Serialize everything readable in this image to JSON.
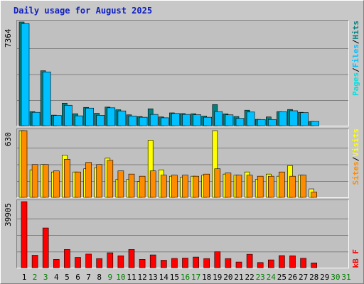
{
  "title": "Daily usage for August 2025",
  "colors": {
    "hits": "#008080",
    "files": "#00c0ff",
    "pages": "#00e0e0",
    "visits": "#ffff00",
    "sites": "#ff8c00",
    "kbytes": "#ff0000",
    "weekday": "#000000",
    "weekend": "#008000",
    "title": "#1020c0"
  },
  "panels": {
    "top": {
      "max_label": "7364",
      "legend": [
        "Pages",
        "Files",
        "Hits"
      ]
    },
    "mid": {
      "max_label": "630",
      "legend": [
        "Sites",
        "Visits"
      ]
    },
    "bot": {
      "max_label": "39905",
      "legend": [
        "kB F"
      ]
    }
  },
  "legend_sep": "/",
  "chart_data": {
    "type": "bar",
    "title": "Daily usage for August 2025",
    "categories": [
      "1",
      "2",
      "3",
      "4",
      "5",
      "6",
      "7",
      "8",
      "9",
      "10",
      "11",
      "12",
      "13",
      "14",
      "15",
      "16",
      "17",
      "18",
      "19",
      "20",
      "21",
      "22",
      "23",
      "24",
      "25",
      "26",
      "27",
      "28",
      "29",
      "30",
      "31"
    ],
    "weekend_days": [
      "2",
      "3",
      "9",
      "10",
      "16",
      "17",
      "23",
      "24",
      "30",
      "31"
    ],
    "hits": [
      7364,
      1000,
      3900,
      750,
      1600,
      850,
      1300,
      880,
      1320,
      1130,
      770,
      650,
      1200,
      620,
      910,
      860,
      850,
      680,
      1500,
      840,
      650,
      1100,
      450,
      620,
      1000,
      1150,
      950,
      300,
      0,
      0,
      0
    ],
    "files": [
      7250,
      950,
      3820,
      730,
      1450,
      700,
      1250,
      740,
      1270,
      1050,
      690,
      600,
      800,
      560,
      870,
      800,
      780,
      600,
      1000,
      770,
      520,
      970,
      440,
      440,
      990,
      1060,
      930,
      300,
      0,
      0,
      0
    ],
    "sites": [
      630,
      310,
      310,
      250,
      360,
      240,
      330,
      310,
      350,
      250,
      220,
      200,
      250,
      210,
      210,
      210,
      200,
      220,
      270,
      230,
      210,
      210,
      200,
      200,
      240,
      200,
      210,
      50,
      0,
      0,
      0
    ],
    "visits": [
      630,
      260,
      310,
      240,
      400,
      240,
      270,
      280,
      370,
      170,
      170,
      150,
      540,
      260,
      200,
      190,
      200,
      210,
      630,
      220,
      210,
      240,
      170,
      220,
      200,
      300,
      210,
      80,
      0,
      0,
      0
    ],
    "kbytes": [
      39905,
      7500,
      24000,
      5000,
      11000,
      6200,
      8200,
      5500,
      9000,
      7200,
      11000,
      5000,
      7700,
      4500,
      5600,
      5800,
      6400,
      5500,
      9600,
      5500,
      3400,
      8100,
      3100,
      4700,
      7300,
      7200,
      5700,
      2900,
      0,
      0,
      0
    ],
    "ylim": {
      "top": [
        0,
        7364
      ],
      "mid": [
        0,
        630
      ],
      "bot": [
        0,
        39905
      ]
    },
    "grid": true
  }
}
